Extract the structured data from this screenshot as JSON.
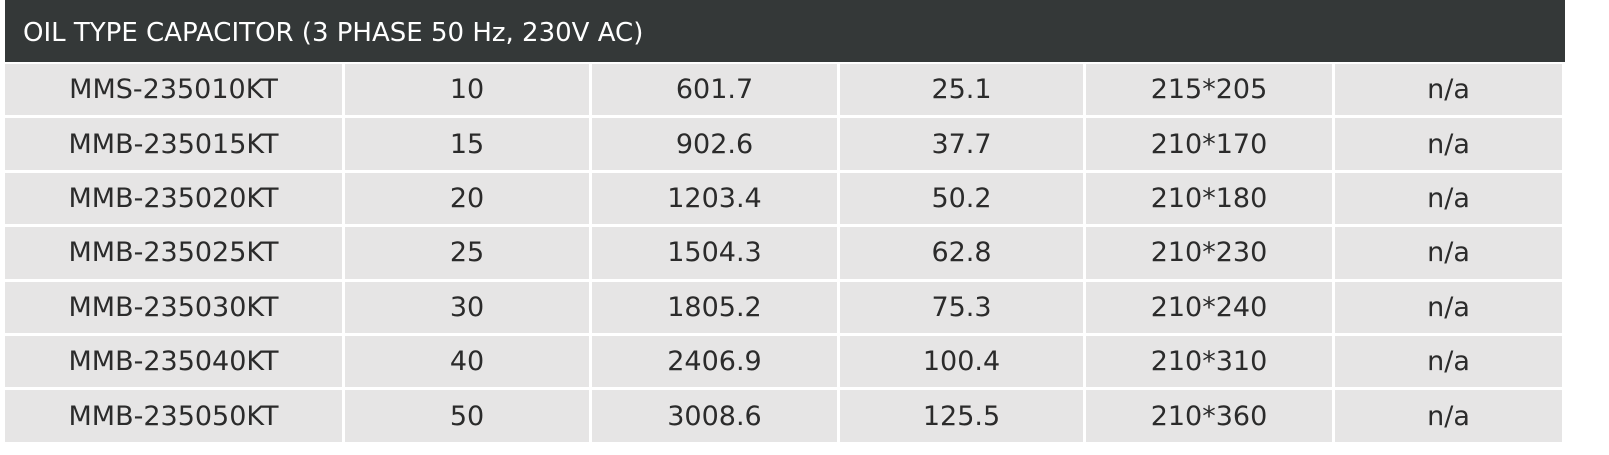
{
  "table": {
    "title": "OIL TYPE CAPACITOR (3 PHASE 50 Hz, 230V AC)",
    "rows": [
      [
        "MMS-235010KT",
        "10",
        "601.7",
        "25.1",
        "215*205",
        "n/a"
      ],
      [
        "MMB-235015KT",
        "15",
        "902.6",
        "37.7",
        "210*170",
        "n/a"
      ],
      [
        "MMB-235020KT",
        "20",
        "1203.4",
        "50.2",
        "210*180",
        "n/a"
      ],
      [
        "MMB-235025KT",
        "25",
        "1504.3",
        "62.8",
        "210*230",
        "n/a"
      ],
      [
        "MMB-235030KT",
        "30",
        "1805.2",
        "75.3",
        "210*240",
        "n/a"
      ],
      [
        "MMB-235040KT",
        "40",
        "2406.9",
        "100.4",
        "210*310",
        "n/a"
      ],
      [
        "MMB-235050KT",
        "50",
        "3008.6",
        "125.5",
        "210*360",
        "n/a"
      ]
    ]
  }
}
